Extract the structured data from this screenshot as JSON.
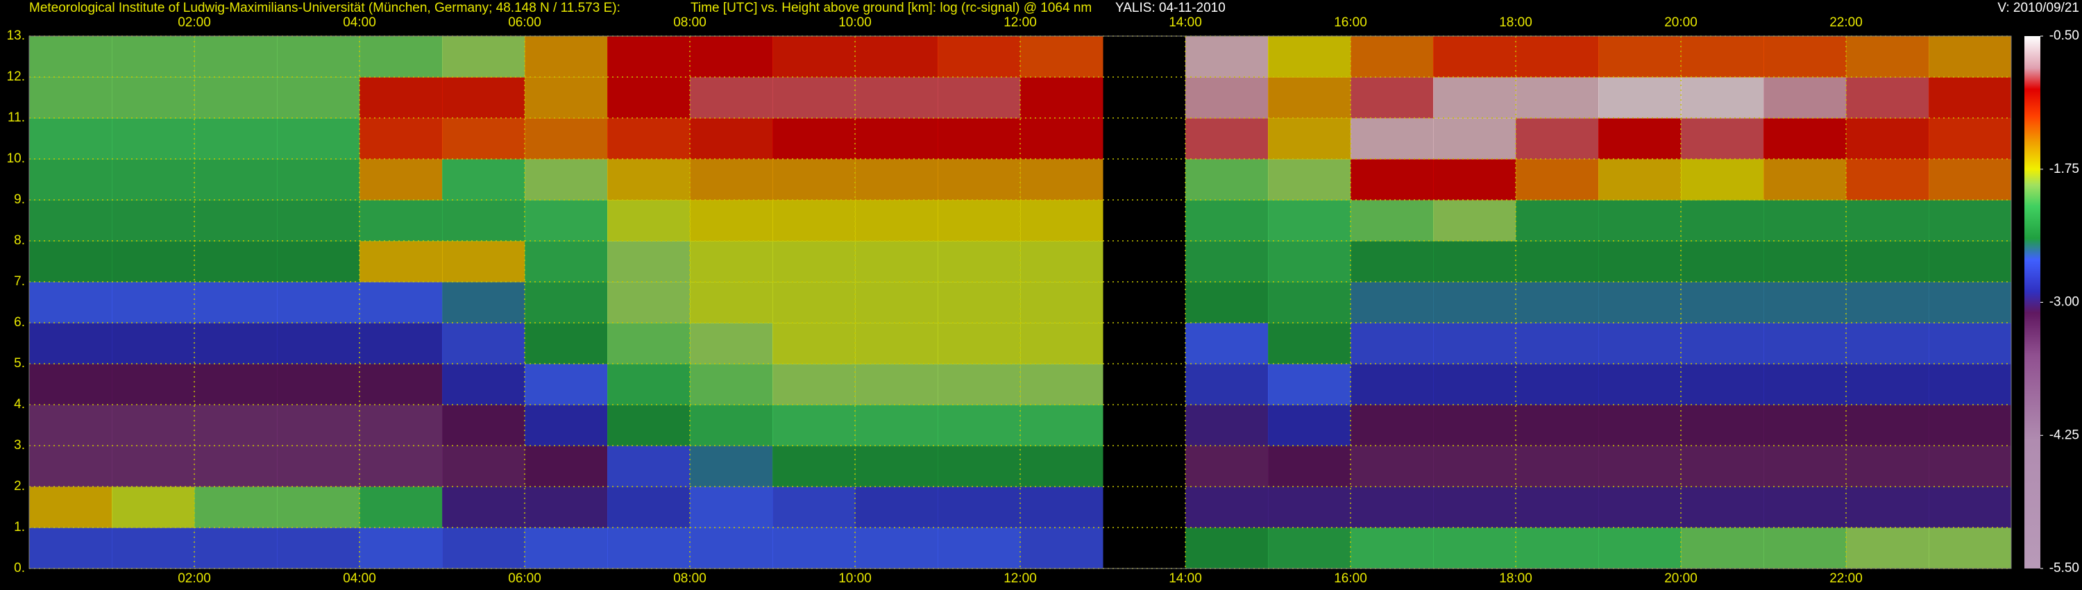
{
  "chart_data": {
    "type": "heatmap",
    "institute": "Meteorological Institute of Ludwig-Maximilians-Universität (München, Germany; 48.148 N / 11.573 E):",
    "title": "Time [UTC] vs. Height above ground [km]: log (rc-signal) @ 1064 nm",
    "station": "YALIS: 04-11-2010",
    "version": "V: 2010/09/21",
    "x_bins": [
      0,
      1,
      2,
      3,
      4,
      5,
      6,
      7,
      8,
      9,
      10,
      11,
      12,
      13,
      14,
      15,
      16,
      17,
      18,
      19,
      20,
      21,
      22,
      23,
      24
    ],
    "y_bins": [
      0,
      1,
      2,
      3,
      4,
      5,
      6,
      7,
      8,
      9,
      10,
      11,
      12,
      13
    ],
    "values": [
      [
        -2.7,
        -2.7,
        -2.7,
        -2.7,
        -2.6,
        -2.7,
        -2.6,
        -2.6,
        -2.6,
        -2.6,
        -2.6,
        -2.6,
        -2.7,
        null,
        -2.4,
        -2.3,
        -2.1,
        -2.1,
        -2.1,
        -2.1,
        -2.0,
        -2.0,
        -1.9,
        -1.9
      ],
      [
        -1.6,
        -1.8,
        -2.0,
        -2.0,
        -2.2,
        -3.0,
        -3.0,
        -2.8,
        -2.6,
        -2.7,
        -2.8,
        -2.8,
        -2.8,
        null,
        -3.0,
        -3.0,
        -3.0,
        -3.0,
        -3.0,
        -3.0,
        -3.0,
        -3.0,
        -3.0,
        -3.0
      ],
      [
        -3.3,
        -3.3,
        -3.3,
        -3.3,
        -3.3,
        -3.2,
        -3.1,
        -2.7,
        -2.5,
        -2.4,
        -2.4,
        -2.4,
        -2.4,
        null,
        -3.2,
        -3.1,
        -3.2,
        -3.2,
        -3.2,
        -3.2,
        -3.2,
        -3.2,
        -3.2,
        -3.2
      ],
      [
        -3.3,
        -3.3,
        -3.3,
        -3.3,
        -3.3,
        -3.1,
        -2.9,
        -2.4,
        -2.2,
        -2.1,
        -2.1,
        -2.1,
        -2.1,
        null,
        -3.0,
        -2.9,
        -3.1,
        -3.1,
        -3.1,
        -3.1,
        -3.1,
        -3.1,
        -3.1,
        -3.1
      ],
      [
        -3.1,
        -3.1,
        -3.1,
        -3.1,
        -3.1,
        -2.9,
        -2.6,
        -2.2,
        -2.0,
        -1.9,
        -1.9,
        -1.9,
        -1.9,
        null,
        -2.8,
        -2.6,
        -2.9,
        -2.9,
        -2.9,
        -2.9,
        -2.9,
        -2.9,
        -2.9,
        -2.9
      ],
      [
        -2.9,
        -2.9,
        -2.9,
        -2.9,
        -2.9,
        -2.7,
        -2.4,
        -2.0,
        -1.9,
        -1.8,
        -1.8,
        -1.8,
        -1.8,
        null,
        -2.6,
        -2.4,
        -2.7,
        -2.7,
        -2.7,
        -2.7,
        -2.7,
        -2.7,
        -2.7,
        -2.7
      ],
      [
        -2.6,
        -2.6,
        -2.6,
        -2.6,
        -2.6,
        -2.5,
        -2.3,
        -1.9,
        -1.8,
        -1.8,
        -1.8,
        -1.8,
        -1.8,
        null,
        -2.4,
        -2.3,
        -2.5,
        -2.5,
        -2.5,
        -2.5,
        -2.5,
        -2.5,
        -2.5,
        -2.5
      ],
      [
        -2.4,
        -2.4,
        -2.4,
        -2.4,
        -1.6,
        -1.6,
        -2.2,
        -1.9,
        -1.8,
        -1.8,
        -1.8,
        -1.8,
        -1.8,
        null,
        -2.3,
        -2.2,
        -2.4,
        -2.4,
        -2.4,
        -2.4,
        -2.4,
        -2.4,
        -2.4,
        -2.4
      ],
      [
        -2.3,
        -2.3,
        -2.3,
        -2.3,
        -2.2,
        -2.2,
        -2.1,
        -1.8,
        -1.7,
        -1.7,
        -1.7,
        -1.7,
        -1.7,
        null,
        -2.2,
        -2.1,
        -2.0,
        -1.9,
        -2.3,
        -2.3,
        -2.3,
        -2.3,
        -2.3,
        -2.3
      ],
      [
        -2.2,
        -2.2,
        -2.2,
        -2.2,
        -1.5,
        -2.1,
        -1.9,
        -1.6,
        -1.5,
        -1.5,
        -1.5,
        -1.5,
        -1.5,
        null,
        -2.0,
        -1.9,
        -1.0,
        -1.0,
        -1.4,
        -1.6,
        -1.7,
        -1.5,
        -1.3,
        -1.4
      ],
      [
        -2.1,
        -2.1,
        -2.1,
        -2.1,
        -1.2,
        -1.3,
        -1.4,
        -1.2,
        -1.1,
        -1.0,
        -1.0,
        -1.0,
        -1.0,
        null,
        -0.9,
        -1.6,
        -0.7,
        -0.7,
        -0.9,
        -1.0,
        -0.9,
        -1.0,
        -1.1,
        -1.2
      ],
      [
        -2.0,
        -2.0,
        -2.0,
        -2.0,
        -1.1,
        -1.1,
        -1.5,
        -1.0,
        -0.9,
        -0.9,
        -0.9,
        -0.9,
        -1.0,
        null,
        -0.8,
        -1.5,
        -0.9,
        -0.7,
        -0.7,
        -0.6,
        -0.6,
        -0.8,
        -0.9,
        -1.1
      ],
      [
        -2.0,
        -2.0,
        -2.0,
        -2.0,
        -2.0,
        -1.9,
        -1.5,
        -1.0,
        -1.0,
        -1.1,
        -1.1,
        -1.2,
        -1.3,
        null,
        -0.7,
        -1.7,
        -1.4,
        -1.2,
        -1.2,
        -1.3,
        -1.3,
        -1.3,
        -1.4,
        -1.5
      ]
    ],
    "xlim": [
      0,
      24
    ],
    "ylim": [
      0,
      13
    ],
    "xticks": [
      {
        "value": 2,
        "label": "02:00"
      },
      {
        "value": 4,
        "label": "04:00"
      },
      {
        "value": 6,
        "label": "06:00"
      },
      {
        "value": 8,
        "label": "08:00"
      },
      {
        "value": 10,
        "label": "10:00"
      },
      {
        "value": 12,
        "label": "12:00"
      },
      {
        "value": 14,
        "label": "14:00"
      },
      {
        "value": 16,
        "label": "16:00"
      },
      {
        "value": 18,
        "label": "18:00"
      },
      {
        "value": 20,
        "label": "20:00"
      },
      {
        "value": 22,
        "label": "22:00"
      }
    ],
    "yticks": [
      {
        "value": 0,
        "label": "0."
      },
      {
        "value": 1,
        "label": "1."
      },
      {
        "value": 2,
        "label": "2."
      },
      {
        "value": 3,
        "label": "3."
      },
      {
        "value": 4,
        "label": "4."
      },
      {
        "value": 5,
        "label": "5."
      },
      {
        "value": 6,
        "label": "6."
      },
      {
        "value": 7,
        "label": "7."
      },
      {
        "value": 8,
        "label": "8."
      },
      {
        "value": 9,
        "label": "9."
      },
      {
        "value": 10,
        "label": "10."
      },
      {
        "value": 11,
        "label": "11."
      },
      {
        "value": 12,
        "label": "12."
      },
      {
        "value": 13,
        "label": "13."
      }
    ],
    "clim": [
      -5.5,
      -0.5
    ],
    "cticks": [
      {
        "value": -0.5,
        "label": "-0.50"
      },
      {
        "value": -1.75,
        "label": "-1.75"
      },
      {
        "value": -3,
        "label": "-3.00"
      },
      {
        "value": -4.25,
        "label": "-4.25"
      },
      {
        "value": -5.5,
        "label": "-5.50"
      }
    ],
    "colorscale": [
      {
        "value": -5.5,
        "color": "#b89ab8"
      },
      {
        "value": -4.3,
        "color": "#b08cb0"
      },
      {
        "value": -3.5,
        "color": "#905090"
      },
      {
        "value": -3.1,
        "color": "#601860"
      },
      {
        "value": -2.9,
        "color": "#3030c0"
      },
      {
        "value": -2.6,
        "color": "#4060ff"
      },
      {
        "value": -2.4,
        "color": "#20a040"
      },
      {
        "value": -2.1,
        "color": "#40d060"
      },
      {
        "value": -1.9,
        "color": "#a0e060"
      },
      {
        "value": -1.75,
        "color": "#f0f000"
      },
      {
        "value": -1.5,
        "color": "#f0a000"
      },
      {
        "value": -1.25,
        "color": "#ff4000"
      },
      {
        "value": -1.0,
        "color": "#e00000"
      },
      {
        "value": -0.8,
        "color": "#e0a0b0"
      },
      {
        "value": -0.5,
        "color": "#ffffff"
      }
    ],
    "grid": true,
    "grid_color": "#c8c800"
  }
}
